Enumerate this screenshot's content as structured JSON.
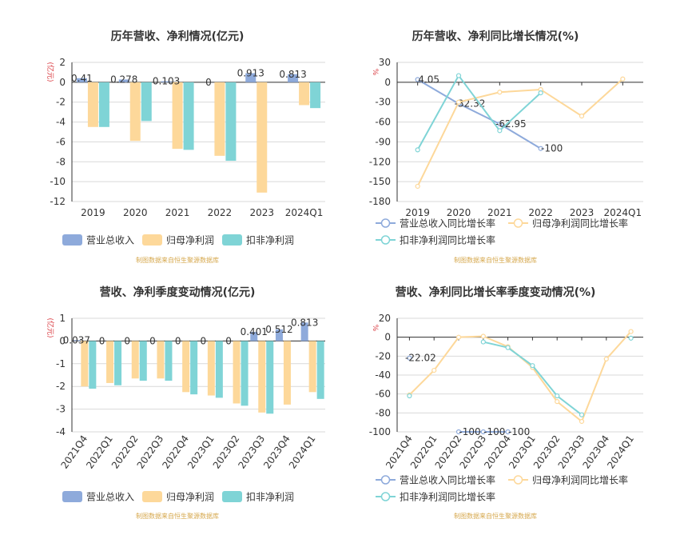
{
  "colors": {
    "revenue": "#8eaadb",
    "net_profit": "#fdd89a",
    "deducted_profit": "#7fd4d6",
    "axis_unit": "#d9393f",
    "source": "#d6a84e",
    "grid": "#d9d9d9",
    "axis": "#333333"
  },
  "chart_data": [
    {
      "type": "bar",
      "title": "历年营收、净利情况(亿元)",
      "yunit": "(亿元)",
      "source": "制图数据来自恒生聚源数据库",
      "categories": [
        "2019",
        "2020",
        "2021",
        "2022",
        "2023",
        "2024Q1"
      ],
      "ylim": [
        -12,
        2
      ],
      "yticks": [
        2,
        0,
        -2,
        -4,
        -6,
        -8,
        -10,
        -12
      ],
      "grid": true,
      "legend_placement": "bottom",
      "series": [
        {
          "name": "营业总收入",
          "values": [
            0.41,
            0.278,
            0.103,
            0,
            0.913,
            0.813
          ],
          "labels": [
            "0.41",
            "0.278",
            "0.103",
            "0",
            "0.913",
            "0.813"
          ]
        },
        {
          "name": "归母净利润",
          "values": [
            -4.5,
            -5.9,
            -6.7,
            -7.4,
            -11.1,
            -2.3
          ]
        },
        {
          "name": "扣非净利润",
          "values": [
            -4.5,
            -3.9,
            -6.8,
            -7.9,
            null,
            -2.6
          ]
        }
      ]
    },
    {
      "type": "line",
      "title": "历年营收、净利同比增长情况(%)",
      "yunit": "%",
      "source": "制图数据来自恒生聚源数据库",
      "categories": [
        "2019",
        "2020",
        "2021",
        "2022",
        "2023",
        "2024Q1"
      ],
      "ylim": [
        -180,
        30
      ],
      "yticks": [
        30,
        0,
        -30,
        -60,
        -90,
        -120,
        -150,
        -180
      ],
      "grid": true,
      "legend_placement": "bottom",
      "series": [
        {
          "name": "营业总收入同比增长率",
          "values": [
            4.05,
            -32.32,
            -62.95,
            -100,
            null,
            null
          ],
          "labels": [
            "4.05",
            "-32.32",
            "-62.95",
            "-100",
            "",
            ""
          ]
        },
        {
          "name": "归母净利润同比增长率",
          "values": [
            -157,
            -30,
            -15,
            -11,
            -51,
            5
          ]
        },
        {
          "name": "扣非净利润同比增长率",
          "values": [
            -102,
            10,
            -73,
            -16,
            null,
            null
          ]
        }
      ]
    },
    {
      "type": "bar",
      "title": "营收、净利季度变动情况(亿元)",
      "yunit": "(亿元)",
      "source": "制图数据来自恒生聚源数据库",
      "categories": [
        "2021Q4",
        "2022Q1",
        "2022Q2",
        "2022Q3",
        "2022Q4",
        "2023Q1",
        "2023Q2",
        "2023Q3",
        "2023Q4",
        "2024Q1"
      ],
      "ylim": [
        -4,
        1
      ],
      "yticks": [
        1,
        0,
        -1,
        -2,
        -3,
        -4
      ],
      "grid": true,
      "legend_placement": "bottom",
      "series": [
        {
          "name": "营业总收入",
          "values": [
            0.037,
            0,
            0,
            0,
            0,
            0,
            0,
            0.401,
            0.512,
            0.813
          ],
          "labels": [
            "0.037",
            "0",
            "0",
            "0",
            "0",
            "0",
            "0",
            "0.401",
            "0.512",
            "0.813"
          ]
        },
        {
          "name": "归母净利润",
          "values": [
            -2.0,
            -1.85,
            -1.65,
            -1.65,
            -2.25,
            -2.4,
            -2.75,
            -3.15,
            -2.8,
            -2.25
          ]
        },
        {
          "name": "扣非净利润",
          "values": [
            -2.1,
            -1.95,
            -1.75,
            -1.75,
            -2.35,
            -2.5,
            -2.85,
            -3.2,
            null,
            -2.55
          ]
        }
      ]
    },
    {
      "type": "line",
      "title": "营收、净利同比增长率季度变动情况(%)",
      "yunit": "%",
      "source": "制图数据来自恒生聚源数据库",
      "categories": [
        "2021Q4",
        "2022Q1",
        "2022Q2",
        "2022Q3",
        "2022Q4",
        "2023Q1",
        "2023Q2",
        "2023Q3",
        "2023Q4",
        "2024Q1"
      ],
      "ylim": [
        -100,
        20
      ],
      "yticks": [
        20,
        0,
        -20,
        -40,
        -60,
        -80,
        -100
      ],
      "grid": true,
      "legend_placement": "bottom",
      "series": [
        {
          "name": "营业总收入同比增长率",
          "values": [
            -22.02,
            null,
            -100,
            -100,
            -100,
            null,
            null,
            null,
            null,
            null
          ],
          "labels": [
            "-22.02",
            "",
            "-100",
            "-100",
            "-100",
            "",
            "",
            "",
            "",
            ""
          ]
        },
        {
          "name": "归母净利润同比增长率",
          "values": [
            -61,
            -35,
            0,
            1,
            -10,
            -32,
            -68,
            -89,
            -23,
            6
          ]
        },
        {
          "name": "扣非净利润同比增长率",
          "values": [
            -62,
            null,
            null,
            -5,
            -11,
            -30,
            -62,
            -82,
            null,
            -1
          ]
        }
      ]
    }
  ]
}
